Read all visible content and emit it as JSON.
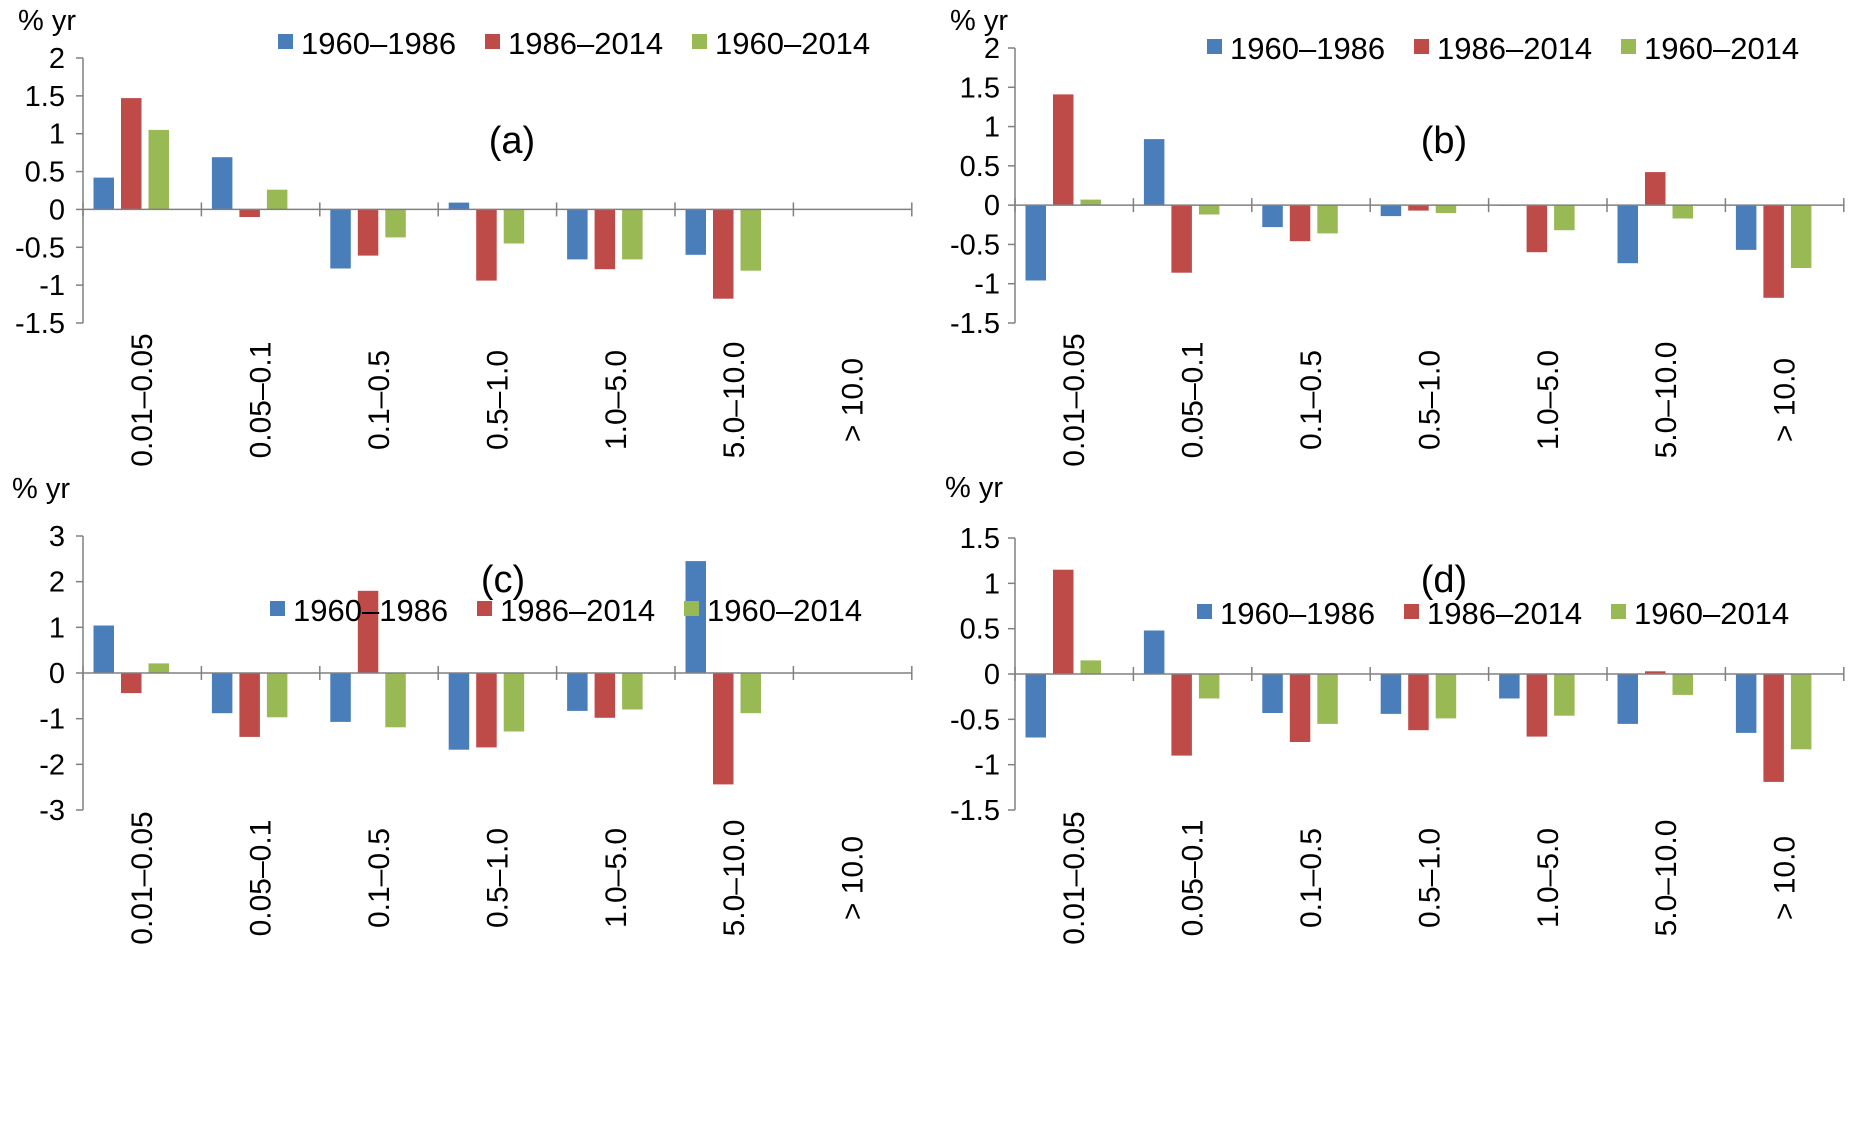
{
  "figure": {
    "colors": {
      "1960–1986": "#4A7EBB",
      "1986–2014": "#BE4B48",
      "1960–2014": "#98B954"
    }
  },
  "chart_data": [
    {
      "type": "bar",
      "panel_label": "(a)",
      "unit_label": "% yr",
      "categories": [
        "0.01–0.05",
        "0.05–0.1",
        "0.1–0.5",
        "0.5–1.0",
        "1.0–5.0",
        "5.0–10.0",
        "> 10.0"
      ],
      "yticks": [
        2,
        1.5,
        1,
        0.5,
        0,
        -0.5,
        -1,
        -1.5
      ],
      "ylim": [
        -1.5,
        2
      ],
      "legend": [
        "1960–1986",
        "1986–2014",
        "1960–2014"
      ],
      "series": [
        {
          "name": "1960–1986",
          "values": [
            0.42,
            0.69,
            -0.78,
            0.09,
            -0.66,
            -0.6,
            null
          ]
        },
        {
          "name": "1986–2014",
          "values": [
            1.47,
            -0.1,
            -0.61,
            -0.94,
            -0.79,
            -1.18,
            null
          ]
        },
        {
          "name": "1960–2014",
          "values": [
            1.05,
            0.26,
            -0.37,
            -0.45,
            -0.66,
            -0.81,
            null
          ]
        }
      ]
    },
    {
      "type": "bar",
      "panel_label": "(b)",
      "unit_label": "% yr",
      "categories": [
        "0.01–0.05",
        "0.05–0.1",
        "0.1–0.5",
        "0.5–1.0",
        "1.0–5.0",
        "5.0–10.0",
        "> 10.0"
      ],
      "yticks": [
        2,
        1.5,
        1,
        0.5,
        0,
        -0.5,
        -1,
        -1.5
      ],
      "ylim": [
        -1.5,
        2
      ],
      "legend": [
        "1960–1986",
        "1986–2014",
        "1960–2014"
      ],
      "series": [
        {
          "name": "1960–1986",
          "values": [
            -0.96,
            0.84,
            -0.28,
            -0.14,
            -0.01,
            -0.74,
            -0.57
          ]
        },
        {
          "name": "1986–2014",
          "values": [
            1.41,
            -0.86,
            -0.46,
            -0.07,
            -0.6,
            0.42,
            -1.18
          ]
        },
        {
          "name": "1960–2014",
          "values": [
            0.07,
            -0.12,
            -0.36,
            -0.1,
            -0.32,
            -0.17,
            -0.8
          ]
        }
      ]
    },
    {
      "type": "bar",
      "panel_label": "(c)",
      "unit_label": "% yr",
      "categories": [
        "0.01–0.05",
        "0.05–0.1",
        "0.1–0.5",
        "0.5–1.0",
        "1.0–5.0",
        "5.0–10.0",
        "> 10.0"
      ],
      "yticks": [
        3,
        2,
        1,
        0,
        -1,
        -2,
        -3
      ],
      "ylim": [
        -3,
        3
      ],
      "legend": [
        "1960–1986",
        "1986–2014",
        "1960–2014"
      ],
      "series": [
        {
          "name": "1960–1986",
          "values": [
            1.04,
            -0.88,
            -1.07,
            -1.68,
            -0.83,
            2.45,
            null
          ]
        },
        {
          "name": "1986–2014",
          "values": [
            -0.44,
            -1.4,
            1.8,
            -1.63,
            -0.98,
            -2.44,
            null
          ]
        },
        {
          "name": "1960–2014",
          "values": [
            0.21,
            -0.97,
            -1.19,
            -1.28,
            -0.8,
            -0.88,
            null
          ]
        }
      ]
    },
    {
      "type": "bar",
      "panel_label": "(d)",
      "unit_label": "% yr",
      "categories": [
        "0.01–0.05",
        "0.05–0.1",
        "0.1–0.5",
        "0.5–1.0",
        "1.0–5.0",
        "5.0–10.0",
        "> 10.0"
      ],
      "yticks": [
        1.5,
        1,
        0.5,
        0,
        -0.5,
        -1,
        -1.5
      ],
      "ylim": [
        -1.5,
        1.5
      ],
      "legend": [
        "1960–1986",
        "1986–2014",
        "1960–2014"
      ],
      "series": [
        {
          "name": "1960–1986",
          "values": [
            -0.7,
            0.48,
            -0.43,
            -0.44,
            -0.27,
            -0.55,
            -0.65
          ]
        },
        {
          "name": "1986–2014",
          "values": [
            1.15,
            -0.9,
            -0.75,
            -0.62,
            -0.69,
            0.03,
            -1.19
          ]
        },
        {
          "name": "1960–2014",
          "values": [
            0.15,
            -0.27,
            -0.55,
            -0.49,
            -0.46,
            -0.23,
            -0.83
          ]
        }
      ]
    }
  ]
}
